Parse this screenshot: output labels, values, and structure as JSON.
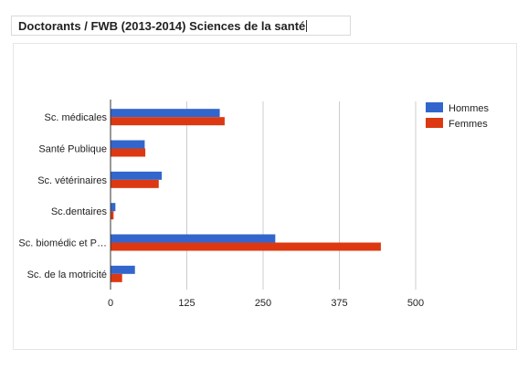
{
  "title": "Doctorants / FWB (2013-2014) Sciences de la santé",
  "chart_data": {
    "type": "bar",
    "orientation": "horizontal",
    "title": "Doctorants / FWB (2013-2014) Sciences de la santé",
    "categories": [
      "Sc. médicales",
      "Santé Publique",
      "Sc. vétérinaires",
      "Sc.dentaires",
      "Sc. biomédic et P…",
      "Sc. de la motricité"
    ],
    "series": [
      {
        "name": "Hommes",
        "color": "#3366cc",
        "values": [
          179,
          56,
          84,
          8,
          270,
          40
        ]
      },
      {
        "name": "Femmes",
        "color": "#dc3912",
        "values": [
          187,
          57,
          79,
          5,
          443,
          19
        ]
      }
    ],
    "xlim": [
      0,
      500
    ],
    "xticks": [
      "0",
      "125",
      "250",
      "375",
      "500"
    ],
    "grid": true,
    "legend": "right"
  }
}
